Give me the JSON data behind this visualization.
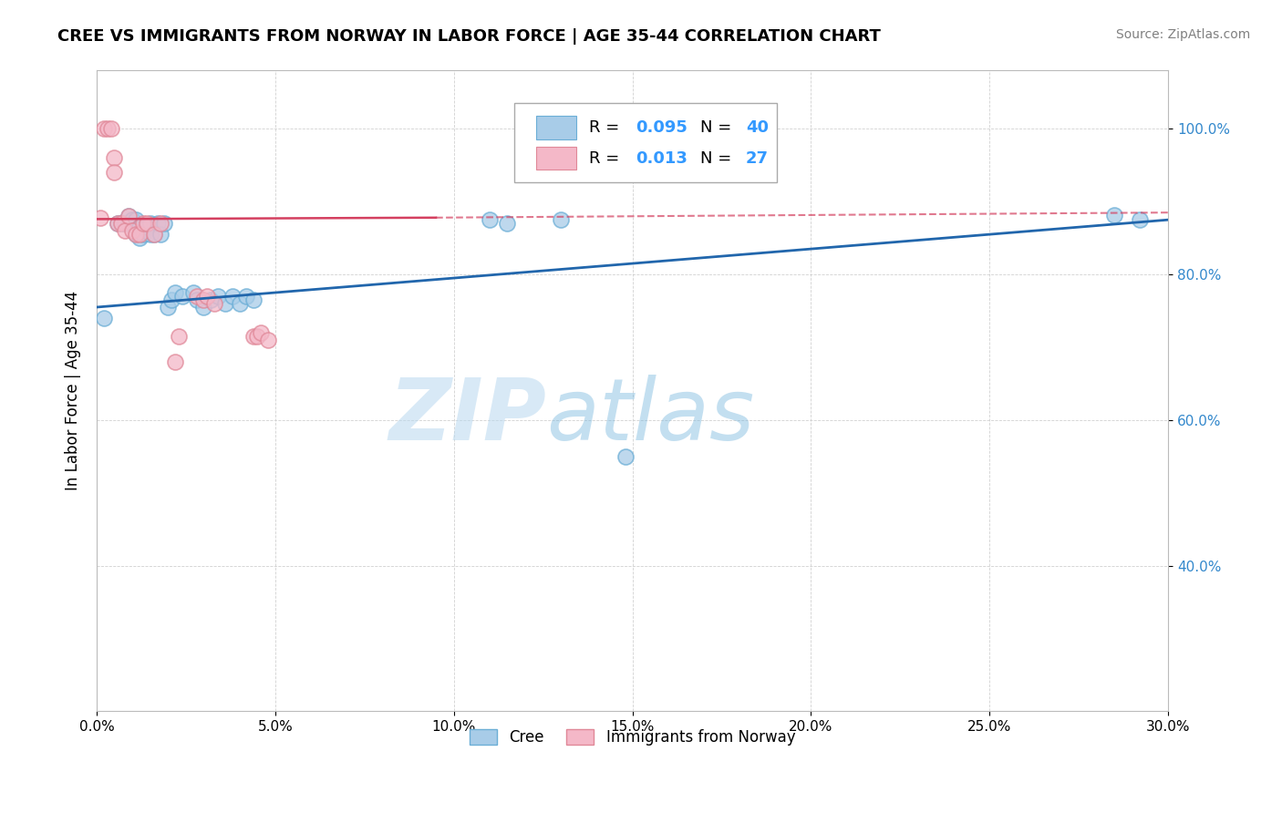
{
  "title": "CREE VS IMMIGRANTS FROM NORWAY IN LABOR FORCE | AGE 35-44 CORRELATION CHART",
  "source": "Source: ZipAtlas.com",
  "ylabel": "In Labor Force | Age 35-44",
  "xlim": [
    0.0,
    0.3
  ],
  "ylim": [
    0.2,
    1.08
  ],
  "xticks": [
    0.0,
    0.05,
    0.1,
    0.15,
    0.2,
    0.25,
    0.3
  ],
  "yticks": [
    0.4,
    0.6,
    0.8,
    1.0
  ],
  "ytick_labels": [
    "40.0%",
    "60.0%",
    "80.0%",
    "100.0%"
  ],
  "xtick_labels": [
    "0.0%",
    "5.0%",
    "10.0%",
    "15.0%",
    "20.0%",
    "25.0%",
    "30.0%"
  ],
  "legend_r_blue": "0.095",
  "legend_n_blue": "40",
  "legend_r_pink": "0.013",
  "legend_n_pink": "27",
  "blue_color": "#a8cce8",
  "pink_color": "#f4b8c8",
  "blue_edge_color": "#6baed6",
  "pink_edge_color": "#e08898",
  "blue_line_color": "#2166ac",
  "pink_line_color": "#d44060",
  "watermark_zip": "ZIP",
  "watermark_atlas": "atlas",
  "blue_x": [
    0.002,
    0.006,
    0.007,
    0.008,
    0.009,
    0.009,
    0.01,
    0.01,
    0.011,
    0.011,
    0.012,
    0.012,
    0.013,
    0.014,
    0.015,
    0.015,
    0.016,
    0.017,
    0.018,
    0.019,
    0.02,
    0.021,
    0.022,
    0.024,
    0.027,
    0.028,
    0.03,
    0.032,
    0.034,
    0.036,
    0.038,
    0.04,
    0.042,
    0.044,
    0.11,
    0.115,
    0.13,
    0.148,
    0.285,
    0.292
  ],
  "blue_y": [
    0.74,
    0.87,
    0.87,
    0.87,
    0.87,
    0.88,
    0.87,
    0.875,
    0.855,
    0.875,
    0.85,
    0.865,
    0.855,
    0.865,
    0.855,
    0.87,
    0.855,
    0.87,
    0.855,
    0.87,
    0.755,
    0.765,
    0.775,
    0.77,
    0.775,
    0.765,
    0.755,
    0.765,
    0.77,
    0.76,
    0.77,
    0.76,
    0.77,
    0.765,
    0.875,
    0.87,
    0.875,
    0.55,
    0.882,
    0.875
  ],
  "pink_x": [
    0.001,
    0.002,
    0.003,
    0.004,
    0.005,
    0.005,
    0.006,
    0.007,
    0.008,
    0.009,
    0.01,
    0.011,
    0.012,
    0.013,
    0.014,
    0.016,
    0.018,
    0.022,
    0.023,
    0.028,
    0.03,
    0.031,
    0.033,
    0.044,
    0.045,
    0.046,
    0.048
  ],
  "pink_y": [
    0.878,
    1.0,
    1.0,
    1.0,
    0.96,
    0.94,
    0.87,
    0.87,
    0.86,
    0.88,
    0.86,
    0.855,
    0.855,
    0.87,
    0.87,
    0.855,
    0.87,
    0.68,
    0.715,
    0.77,
    0.765,
    0.77,
    0.76,
    0.715,
    0.715,
    0.72,
    0.71
  ]
}
